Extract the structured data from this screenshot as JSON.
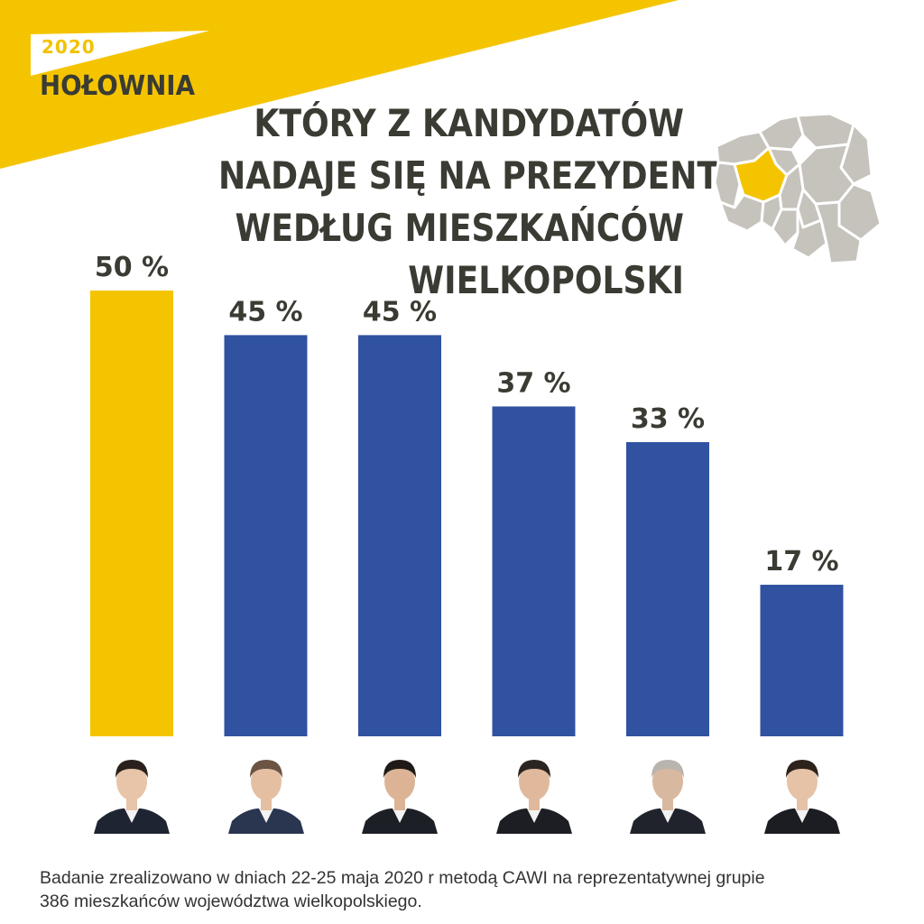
{
  "brand": {
    "year": "2020",
    "name": "HOŁOWNIA"
  },
  "title_lines": [
    "KTÓRY Z KANDYDATÓW",
    "NADAJE SIĘ NA PREZYDENTA",
    "WEDŁUG MIESZKAŃCÓW",
    "WIELKOPOLSKI"
  ],
  "colors": {
    "accent": "#f5c400",
    "bar": "#3052a0",
    "text": "#3a3b33",
    "map_fill": "#c6c3bd"
  },
  "chart_data": {
    "type": "bar",
    "categories": [
      "",
      "",
      "",
      "",
      "",
      ""
    ],
    "values": [
      50,
      45,
      45,
      37,
      33,
      17
    ],
    "labels": [
      "50 %",
      "45 %",
      "45 %",
      "37 %",
      "33 %",
      "17 %"
    ],
    "highlight_index": 0,
    "ylim": [
      0,
      50
    ],
    "grid": false,
    "legend": "none"
  },
  "footnote_lines": [
    "Badanie zrealizowano w dniach 22-25 maja 2020 r metodą CAWI na reprezentatywnej grupie",
    "386 mieszkańców województwa wielkopolskiego."
  ]
}
